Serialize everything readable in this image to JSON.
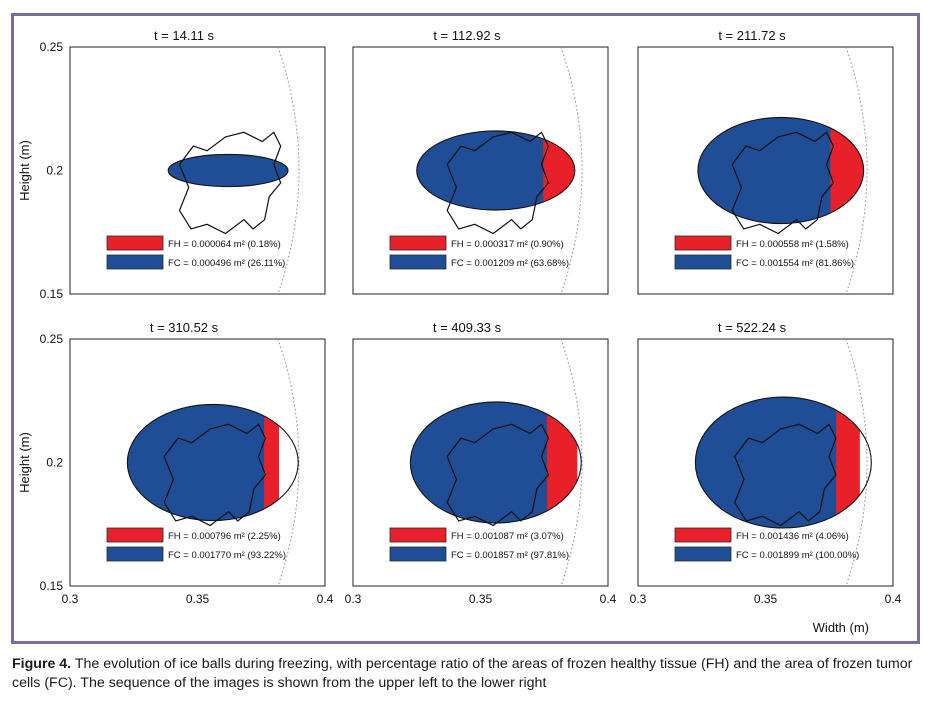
{
  "figure": {
    "caption_label": "Figure 4.",
    "caption_text": " The evolution of ice balls during freezing, with percentage ratio of the areas of frozen healthy tissue (FH) and the area of frozen tumor cells (FC). The sequence of the images is shown from the upper left to the lower right",
    "ylabel": "Height (m)",
    "xlabel": "Width (m)",
    "y_ticks": [
      "0.25",
      "0.2",
      "0.15"
    ],
    "x_ticks": [
      "0.3",
      "0.35",
      "0.4"
    ],
    "colors": {
      "FH": "#e8202a",
      "FC": "#1f4e96",
      "frame": "#7b6aa6"
    }
  },
  "chart_data": [
    {
      "type": "area",
      "title": "t = 14.11 s",
      "xlim": [
        0.3,
        0.4
      ],
      "ylim": [
        0.15,
        0.25
      ],
      "ice_ball": {
        "cx": 0.362,
        "cy": 0.2,
        "rx": 0.0235,
        "ry": 0.0065,
        "flat_right": 0.387
      },
      "legend": [
        {
          "key": "FH",
          "label": "FH = 0.000064 m² (0.18%)"
        },
        {
          "key": "FC",
          "label": "FC = 0.000496 m² (26.11%)"
        }
      ]
    },
    {
      "type": "area",
      "title": "t = 112.92 s",
      "xlim": [
        0.3,
        0.4
      ],
      "ylim": [
        0.15,
        0.25
      ],
      "ice_ball": {
        "cx": 0.356,
        "cy": 0.2,
        "rx": 0.031,
        "ry": 0.016,
        "flat_right": 0.39
      },
      "legend": [
        {
          "key": "FH",
          "label": "FH = 0.000317 m² (0.90%)"
        },
        {
          "key": "FC",
          "label": "FC = 0.001209 m² (63.68%)"
        }
      ]
    },
    {
      "type": "area",
      "title": "t = 211.72 s",
      "xlim": [
        0.3,
        0.4
      ],
      "ylim": [
        0.15,
        0.25
      ],
      "ice_ball": {
        "cx": 0.356,
        "cy": 0.2,
        "rx": 0.0325,
        "ry": 0.0215,
        "flat_right": 0.39
      },
      "legend": [
        {
          "key": "FH",
          "label": "FH = 0.000558 m² (1.58%)"
        },
        {
          "key": "FC",
          "label": "FC = 0.001554 m² (81.86%)"
        }
      ]
    },
    {
      "type": "area",
      "title": "t = 310.52 s",
      "xlim": [
        0.3,
        0.4
      ],
      "ylim": [
        0.15,
        0.25
      ],
      "ice_ball": {
        "cx": 0.356,
        "cy": 0.2,
        "rx": 0.0335,
        "ry": 0.0235,
        "flat_right": 0.382
      },
      "legend": [
        {
          "key": "FH",
          "label": "FH = 0.000796 m² (2.25%)"
        },
        {
          "key": "FC",
          "label": "FC = 0.001770 m² (93.22%)"
        }
      ]
    },
    {
      "type": "area",
      "title": "t = 409.33 s",
      "xlim": [
        0.3,
        0.4
      ],
      "ylim": [
        0.15,
        0.25
      ],
      "ice_ball": {
        "cx": 0.356,
        "cy": 0.2,
        "rx": 0.0335,
        "ry": 0.0245,
        "flat_right": 0.388
      },
      "legend": [
        {
          "key": "FH",
          "label": "FH = 0.001087 m² (3.07%)"
        },
        {
          "key": "FC",
          "label": "FC = 0.001857 m² (97.81%)"
        }
      ]
    },
    {
      "type": "area",
      "title": "t = 522.24 s",
      "xlim": [
        0.3,
        0.4
      ],
      "ylim": [
        0.15,
        0.25
      ],
      "ice_ball": {
        "cx": 0.357,
        "cy": 0.2,
        "rx": 0.0345,
        "ry": 0.0265,
        "flat_right": 0.387
      },
      "legend": [
        {
          "key": "FH",
          "label": "FH = 0.001436 m² (4.06%)"
        },
        {
          "key": "FC",
          "label": "FC = 0.001899 m² (100.00%)"
        }
      ]
    }
  ]
}
